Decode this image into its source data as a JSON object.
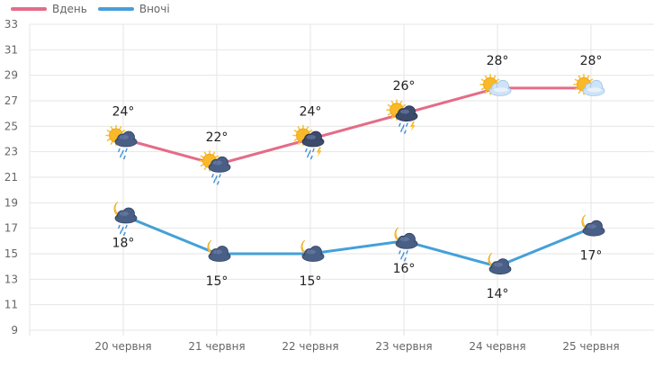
{
  "chart_data": {
    "type": "line",
    "categories": [
      "20 червня",
      "21 червня",
      "22 червня",
      "23 червня",
      "24 червня",
      "25 червня"
    ],
    "ylim": [
      9,
      33
    ],
    "yticks": [
      9,
      11,
      13,
      15,
      17,
      19,
      21,
      23,
      25,
      27,
      29,
      31,
      33
    ],
    "grid": true,
    "legend_position": "top-left",
    "series": [
      {
        "name": "Вдень",
        "color": "#e46c88",
        "values": [
          24,
          22,
          24,
          26,
          28,
          28
        ],
        "labels": [
          "24°",
          "22°",
          "24°",
          "26°",
          "28°",
          "28°"
        ],
        "label_position": "above",
        "icons": [
          "sun-cloud-rain-icon",
          "sun-cloud-rain-icon",
          "sun-cloud-storm-icon",
          "sun-cloud-storm-icon",
          "sun-cloud-icon",
          "sun-cloud-icon"
        ]
      },
      {
        "name": "Вночі",
        "color": "#45a0d8",
        "values": [
          18,
          15,
          15,
          16,
          14,
          17
        ],
        "labels": [
          "18°",
          "15°",
          "15°",
          "16°",
          "14°",
          "17°"
        ],
        "label_position": "below",
        "icons": [
          "moon-cloud-rain-icon",
          "moon-cloud-icon",
          "moon-cloud-icon",
          "moon-cloud-rain-icon",
          "moon-cloud-icon",
          "moon-cloud-icon"
        ]
      }
    ]
  },
  "legend": {
    "day_label": "Вдень",
    "night_label": "Вночі"
  }
}
